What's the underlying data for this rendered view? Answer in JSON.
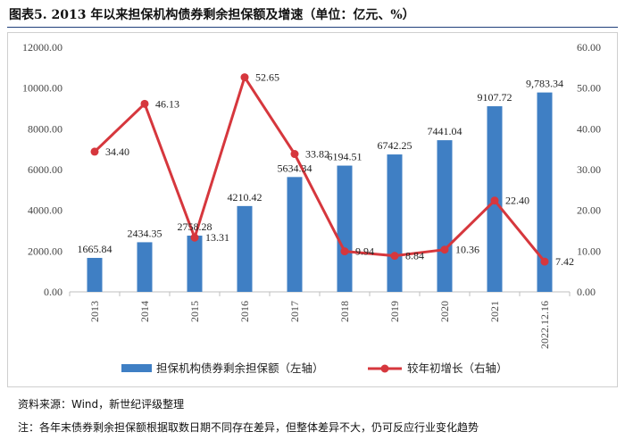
{
  "header": {
    "title": "图表5.   2013 年以来担保机构债券剩余担保额及增速（单位：亿元、%）"
  },
  "footer": {
    "source": "资料来源：Wind，新世纪评级整理",
    "note": "注：各年末债券剩余担保额根据取数日期不同存在差异，但整体差异不大，仍可反应行业变化趋势"
  },
  "chart_data": {
    "type": "bar+line",
    "categories": [
      "2013",
      "2014",
      "2015",
      "2016",
      "2017",
      "2018",
      "2019",
      "2020",
      "2021",
      "2022.12.16"
    ],
    "series": [
      {
        "name": "担保机构债券剩余担保额（左轴）",
        "type": "bar",
        "axis": "left",
        "color": "#3f7fc4",
        "values": [
          1665.84,
          2434.35,
          2758.28,
          4210.42,
          5634.34,
          6194.51,
          6742.25,
          7441.04,
          9107.72,
          9783.34
        ],
        "labels": [
          "1665.84",
          "2434.35",
          "2758.28",
          "4210.42",
          "5634.34",
          "6194.51",
          "6742.25",
          "7441.04",
          "9107.72",
          "9,783.34"
        ]
      },
      {
        "name": "较年初增长（右轴）",
        "type": "line",
        "axis": "right",
        "color": "#d6373d",
        "values": [
          34.4,
          46.13,
          13.31,
          52.65,
          33.82,
          9.94,
          8.84,
          10.36,
          22.4,
          7.42
        ],
        "labels": [
          "34.40",
          "46.13",
          "13.31",
          "52.65",
          "33.82",
          "9.94",
          "8.84",
          "10.36",
          "22.40",
          "7.42"
        ]
      }
    ],
    "y_left": {
      "range": [
        0,
        12000
      ],
      "ticks": [
        "0.00",
        "2000.00",
        "4000.00",
        "6000.00",
        "8000.00",
        "10000.00",
        "12000.00"
      ]
    },
    "y_right": {
      "range": [
        0,
        60
      ],
      "ticks": [
        "0.00",
        "10.00",
        "20.00",
        "30.00",
        "40.00",
        "50.00",
        "60.00"
      ]
    },
    "grid": false,
    "legend": "bottom"
  }
}
